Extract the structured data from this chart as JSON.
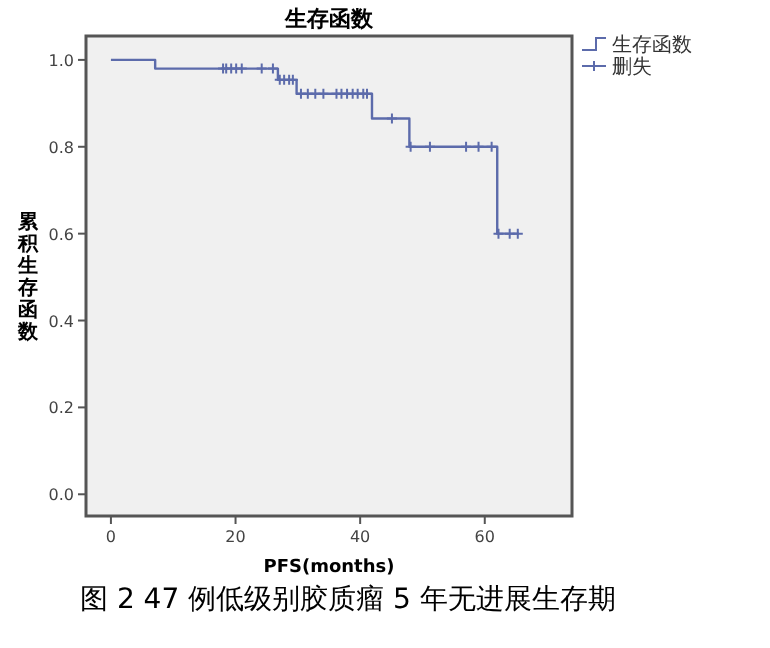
{
  "chart_data": {
    "type": "step",
    "title": "生存函数",
    "xlabel": "PFS(months)",
    "ylabel": "累积生存函数",
    "annotations": [
      "图 2 47 例低级别胶质瘤 5 年无进展生存期"
    ],
    "xlim": [
      -4,
      74
    ],
    "ylim": [
      -0.05,
      1.055
    ],
    "xticks": [
      0,
      20,
      40,
      60
    ],
    "yticks": [
      {
        "value": 0,
        "label": "0.0"
      },
      {
        "value": 0.2,
        "label": "0.2"
      },
      {
        "value": 0.4,
        "label": "0.4"
      },
      {
        "value": 0.6,
        "label": "0.6"
      },
      {
        "value": 0.8,
        "label": "0.8"
      },
      {
        "value": 1,
        "label": "1.0"
      }
    ],
    "legend": "right",
    "series": [
      {
        "name": "生存函数",
        "type": "step",
        "color": "#5c6bab",
        "x": [
          0,
          7.1,
          26.8,
          29.8,
          41.9,
          47.9,
          62.0,
          65.5
        ],
        "values": [
          1.0,
          0.98,
          0.954,
          0.922,
          0.865,
          0.8,
          0.6,
          0.6
        ]
      },
      {
        "name": "删失",
        "type": "scatter",
        "marker": "cross",
        "color": "#5c6bab",
        "x": [
          18.0,
          18.5,
          19.3,
          20.1,
          21.0,
          24.2,
          26.0,
          27.1,
          27.8,
          28.6,
          29.2,
          30.5,
          31.6,
          32.8,
          34.1,
          36.2,
          37.0,
          37.9,
          38.8,
          39.6,
          40.5,
          41.1,
          45.1,
          48.1,
          51.2,
          57.0,
          59.0,
          61.1,
          62.2,
          64.0,
          65.3
        ],
        "values": [
          0.98,
          0.98,
          0.98,
          0.98,
          0.98,
          0.98,
          0.98,
          0.954,
          0.954,
          0.954,
          0.954,
          0.922,
          0.922,
          0.922,
          0.922,
          0.922,
          0.922,
          0.922,
          0.922,
          0.922,
          0.922,
          0.922,
          0.865,
          0.8,
          0.8,
          0.8,
          0.8,
          0.8,
          0.6,
          0.6,
          0.6
        ]
      }
    ]
  }
}
